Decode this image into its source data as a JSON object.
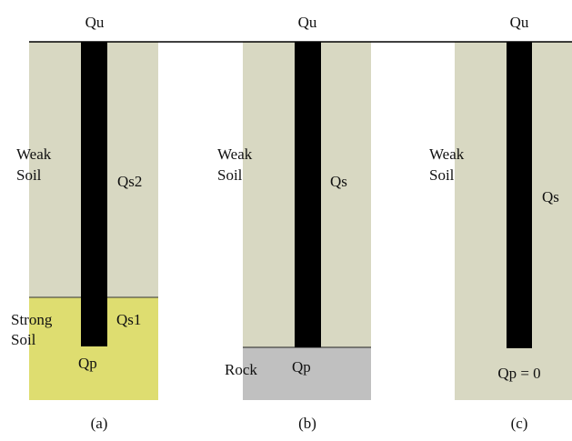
{
  "colors": {
    "weak_soil": "#d8d8c2",
    "strong_soil": "#dedd70",
    "rock": "#c0c0c0",
    "pile": "#000000",
    "ground_line": "#000000",
    "background": "#ffffff"
  },
  "panels": [
    {
      "caption": "(a)",
      "load_label": "Qu",
      "upper_layer_label": [
        "Weak",
        "Soil"
      ],
      "upper_side_label": "Qs2",
      "lower_layer_label": [
        "Strong",
        "Soil"
      ],
      "lower_side_label": "Qs1",
      "tip_label": "Qp"
    },
    {
      "caption": "(b)",
      "load_label": "Qu",
      "upper_layer_label": [
        "Weak",
        "Soil"
      ],
      "upper_side_label": "Qs",
      "lower_layer_label": [
        "Rock"
      ],
      "tip_label": "Qp"
    },
    {
      "caption": "(c)",
      "load_label": "Qu",
      "upper_layer_label": [
        "Weak",
        "Soil"
      ],
      "upper_side_label": "Qs",
      "tip_label": "Qp = 0"
    }
  ]
}
